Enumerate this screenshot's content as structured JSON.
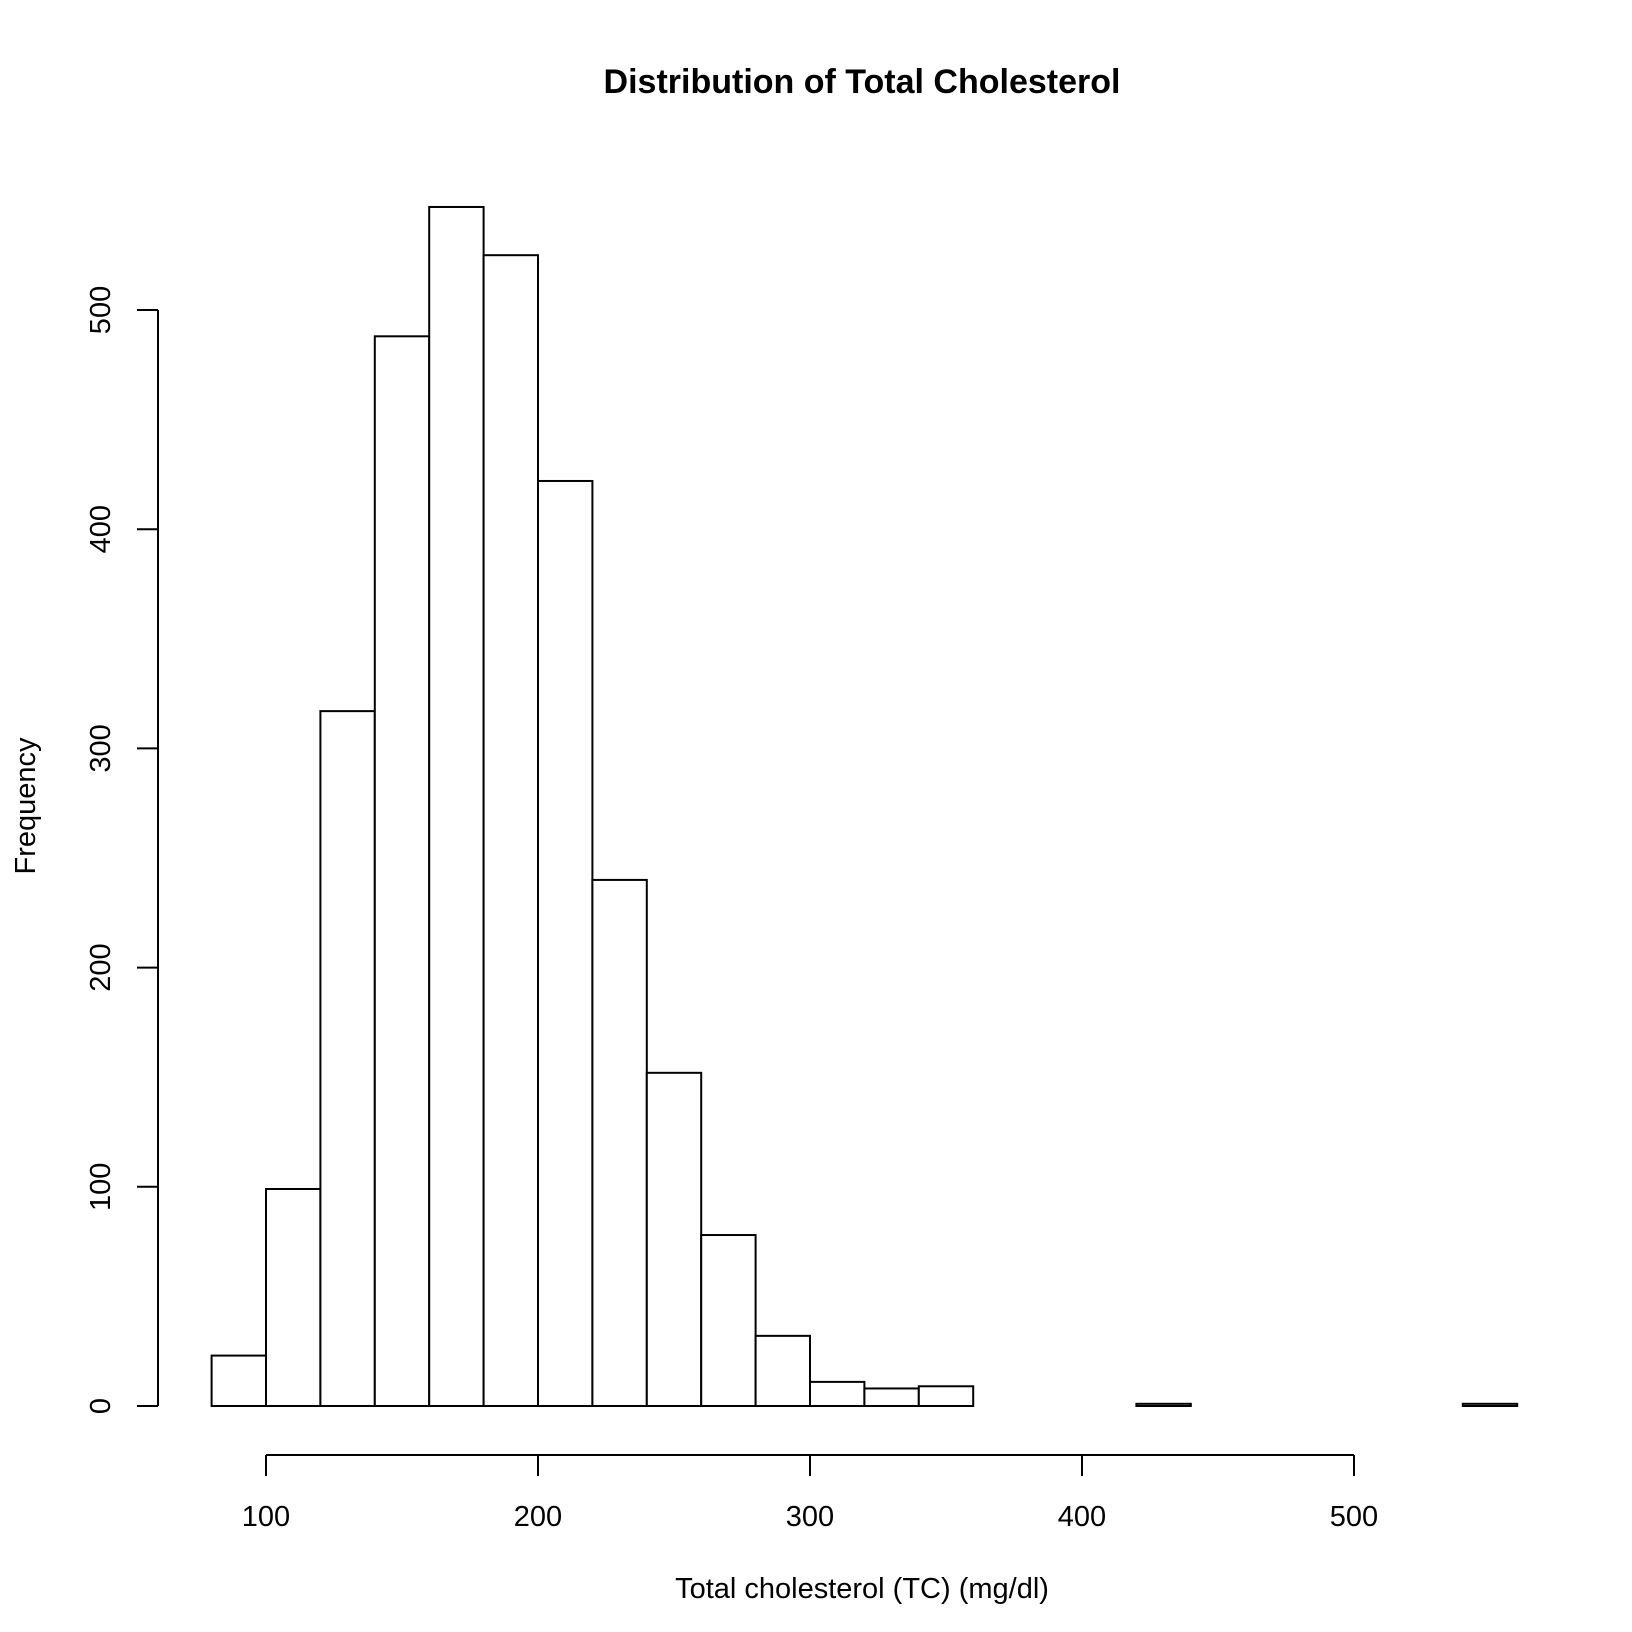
{
  "chart_data": {
    "type": "bar",
    "title": "Distribution of Total Cholesterol",
    "xlabel": "Total cholesterol (TC) (mg/dl)",
    "ylabel": "Frequency",
    "bins": [
      {
        "start": 80,
        "end": 100,
        "count": 23
      },
      {
        "start": 100,
        "end": 120,
        "count": 99
      },
      {
        "start": 120,
        "end": 140,
        "count": 317
      },
      {
        "start": 140,
        "end": 160,
        "count": 488
      },
      {
        "start": 160,
        "end": 180,
        "count": 547
      },
      {
        "start": 180,
        "end": 200,
        "count": 525
      },
      {
        "start": 200,
        "end": 220,
        "count": 422
      },
      {
        "start": 220,
        "end": 240,
        "count": 240
      },
      {
        "start": 240,
        "end": 260,
        "count": 152
      },
      {
        "start": 260,
        "end": 280,
        "count": 78
      },
      {
        "start": 280,
        "end": 300,
        "count": 32
      },
      {
        "start": 300,
        "end": 320,
        "count": 11
      },
      {
        "start": 320,
        "end": 340,
        "count": 8
      },
      {
        "start": 340,
        "end": 360,
        "count": 9
      },
      {
        "start": 360,
        "end": 380,
        "count": 0
      },
      {
        "start": 380,
        "end": 400,
        "count": 0
      },
      {
        "start": 400,
        "end": 420,
        "count": 0
      },
      {
        "start": 420,
        "end": 440,
        "count": 1
      },
      {
        "start": 440,
        "end": 460,
        "count": 0
      },
      {
        "start": 460,
        "end": 480,
        "count": 0
      },
      {
        "start": 480,
        "end": 500,
        "count": 0
      },
      {
        "start": 500,
        "end": 520,
        "count": 0
      },
      {
        "start": 520,
        "end": 540,
        "count": 0
      },
      {
        "start": 540,
        "end": 560,
        "count": 1
      }
    ],
    "x_ticks": [
      100,
      200,
      300,
      400,
      500
    ],
    "y_ticks": [
      0,
      100,
      200,
      300,
      400,
      500
    ],
    "xlim": [
      80,
      560
    ],
    "ylim": [
      0,
      547
    ],
    "grid": false,
    "legend": "none"
  }
}
